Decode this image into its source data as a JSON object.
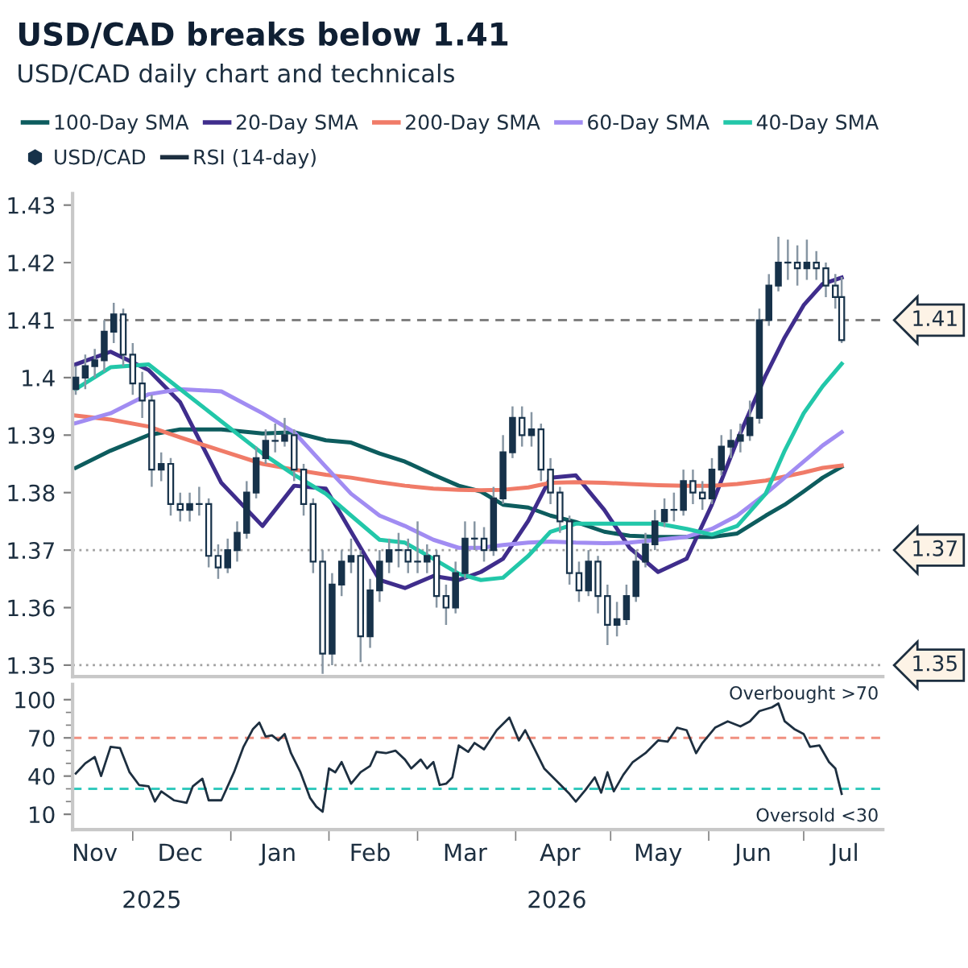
{
  "chart_data": [
    {
      "type": "candlestick",
      "title": "USD/CAD breaks below 1.41",
      "subtitle": "USD/CAD daily chart and technicals",
      "legend": "top",
      "tick_labels": "y",
      "xlim": [
        "2025-11-12",
        "2026-07-26"
      ],
      "ylim": [
        1.348,
        1.432
      ],
      "yticks": [
        1.35,
        1.36,
        1.37,
        1.38,
        1.39,
        1.4,
        1.41,
        1.42,
        1.43
      ],
      "ref_lines": [
        {
          "axis": "y",
          "value": 1.41,
          "label": "1.41",
          "color": "#808080",
          "line_style": "dashed"
        },
        {
          "axis": "y",
          "value": 1.37,
          "label": "1.37",
          "color": "#a0a0a0",
          "line_style": "dotted"
        },
        {
          "axis": "y",
          "value": 1.35,
          "label": "1.35",
          "color": "#a0a0a0",
          "line_style": "dotted"
        }
      ],
      "series": [
        {
          "name": "100-Day SMA",
          "type": "line",
          "color": "#0d5c5e",
          "x": [
            "2025-11-13",
            "2025-11-24",
            "2025-12-06",
            "2025-12-16",
            "2025-12-29",
            "2026-01-11",
            "2026-01-21",
            "2026-01-31",
            "2026-02-08",
            "2026-02-17",
            "2026-02-25",
            "2026-03-06",
            "2026-03-14",
            "2026-03-21",
            "2026-03-28",
            "2026-04-05",
            "2026-04-12",
            "2026-04-20",
            "2026-04-29",
            "2026-05-07",
            "2026-05-16",
            "2026-05-25",
            "2026-06-02",
            "2026-06-10",
            "2026-06-19",
            "2026-06-25",
            "2026-07-01",
            "2026-07-07",
            "2026-07-13"
          ],
          "values": [
            1.3843,
            1.3873,
            1.39,
            1.391,
            1.391,
            1.3903,
            1.3905,
            1.3891,
            1.3887,
            1.3868,
            1.3854,
            1.3831,
            1.3812,
            1.3802,
            1.3779,
            1.3774,
            1.376,
            1.3749,
            1.3732,
            1.3725,
            1.3723,
            1.3723,
            1.3723,
            1.3729,
            1.376,
            1.3779,
            1.3802,
            1.3826,
            1.3845
          ]
        },
        {
          "name": "20-Day SMA",
          "type": "line",
          "color": "#3f2d8c",
          "x": [
            "2025-11-13",
            "2025-11-24",
            "2025-12-06",
            "2025-12-16",
            "2025-12-29",
            "2026-01-11",
            "2026-01-21",
            "2026-01-31",
            "2026-02-08",
            "2026-02-17",
            "2026-02-25",
            "2026-03-06",
            "2026-03-14",
            "2026-03-21",
            "2026-03-28",
            "2026-04-05",
            "2026-04-12",
            "2026-04-20",
            "2026-04-29",
            "2026-05-07",
            "2026-05-16",
            "2026-05-25",
            "2026-06-02",
            "2026-06-10",
            "2026-06-19",
            "2026-06-25",
            "2026-07-01",
            "2026-07-07",
            "2026-07-13"
          ],
          "values": [
            1.4023,
            1.4045,
            1.4013,
            1.3957,
            1.3817,
            1.3742,
            1.3812,
            1.3807,
            1.3732,
            1.3648,
            1.3634,
            1.3655,
            1.3648,
            1.3662,
            1.3685,
            1.3751,
            1.3826,
            1.383,
            1.377,
            1.3704,
            1.3662,
            1.3685,
            1.3779,
            1.3891,
            1.4004,
            1.407,
            1.4126,
            1.4163,
            1.4174
          ]
        },
        {
          "name": "200-Day SMA",
          "type": "line",
          "color": "#f07b68",
          "x": [
            "2025-11-13",
            "2025-11-24",
            "2025-12-06",
            "2025-12-16",
            "2025-12-29",
            "2026-01-11",
            "2026-01-21",
            "2026-01-31",
            "2026-02-08",
            "2026-02-17",
            "2026-02-25",
            "2026-03-06",
            "2026-03-14",
            "2026-03-21",
            "2026-03-28",
            "2026-04-05",
            "2026-04-12",
            "2026-04-20",
            "2026-04-29",
            "2026-05-07",
            "2026-05-16",
            "2026-05-25",
            "2026-06-02",
            "2026-06-10",
            "2026-06-19",
            "2026-06-25",
            "2026-07-01",
            "2026-07-07",
            "2026-07-13"
          ],
          "values": [
            1.3934,
            1.3927,
            1.3915,
            1.3896,
            1.3873,
            1.385,
            1.384,
            1.3831,
            1.3826,
            1.3818,
            1.3812,
            1.3807,
            1.3805,
            1.3804,
            1.3805,
            1.3809,
            1.3817,
            1.3818,
            1.3817,
            1.3815,
            1.3813,
            1.3812,
            1.3812,
            1.3815,
            1.3821,
            1.3828,
            1.3835,
            1.3843,
            1.3847
          ]
        },
        {
          "name": "60-Day SMA",
          "type": "line",
          "color": "#a18cf2",
          "x": [
            "2025-11-13",
            "2025-11-24",
            "2025-12-06",
            "2025-12-16",
            "2025-12-29",
            "2026-01-11",
            "2026-01-21",
            "2026-01-31",
            "2026-02-08",
            "2026-02-17",
            "2026-02-25",
            "2026-03-06",
            "2026-03-14",
            "2026-03-21",
            "2026-03-28",
            "2026-04-05",
            "2026-04-12",
            "2026-04-20",
            "2026-04-29",
            "2026-05-07",
            "2026-05-16",
            "2026-05-25",
            "2026-06-02",
            "2026-06-10",
            "2026-06-19",
            "2026-06-25",
            "2026-07-01",
            "2026-07-07",
            "2026-07-13"
          ],
          "values": [
            1.3921,
            1.3938,
            1.3971,
            1.398,
            1.3976,
            1.3938,
            1.3905,
            1.3845,
            1.3798,
            1.376,
            1.3742,
            1.3718,
            1.3704,
            1.3704,
            1.3709,
            1.3713,
            1.3715,
            1.3713,
            1.3712,
            1.3713,
            1.3718,
            1.3723,
            1.3737,
            1.376,
            1.3798,
            1.3826,
            1.3854,
            1.3882,
            1.3905
          ]
        },
        {
          "name": "40-Day SMA",
          "type": "line",
          "color": "#22c7a9",
          "x": [
            "2025-11-13",
            "2025-11-24",
            "2025-12-06",
            "2025-12-16",
            "2025-12-29",
            "2026-01-11",
            "2026-01-21",
            "2026-01-31",
            "2026-02-08",
            "2026-02-17",
            "2026-02-25",
            "2026-03-06",
            "2026-03-14",
            "2026-03-21",
            "2026-03-28",
            "2026-04-05",
            "2026-04-12",
            "2026-04-20",
            "2026-04-29",
            "2026-05-07",
            "2026-05-16",
            "2026-05-25",
            "2026-06-02",
            "2026-06-10",
            "2026-06-19",
            "2026-06-25",
            "2026-07-01",
            "2026-07-07",
            "2026-07-13"
          ],
          "values": [
            1.398,
            1.4018,
            1.4023,
            1.398,
            1.3924,
            1.3868,
            1.3831,
            1.3798,
            1.376,
            1.3718,
            1.3713,
            1.3685,
            1.3659,
            1.3648,
            1.3652,
            1.369,
            1.3732,
            1.3746,
            1.3746,
            1.3746,
            1.3746,
            1.3737,
            1.3727,
            1.3742,
            1.3798,
            1.3873,
            1.3938,
            1.3985,
            1.4024
          ]
        },
        {
          "name": "USD/CAD",
          "type": "candlestick",
          "color": "#17324a",
          "x": [
            "2025-11-13",
            "2025-11-16",
            "2025-11-19",
            "2025-11-22",
            "2025-11-25",
            "2025-11-28",
            "2025-12-01",
            "2025-12-04",
            "2025-12-07",
            "2025-12-10",
            "2025-12-13",
            "2025-12-16",
            "2025-12-19",
            "2025-12-22",
            "2025-12-25",
            "2025-12-28",
            "2025-12-31",
            "2026-01-03",
            "2026-01-06",
            "2026-01-09",
            "2026-01-12",
            "2026-01-15",
            "2026-01-18",
            "2026-01-21",
            "2026-01-24",
            "2026-01-27",
            "2026-01-30",
            "2026-02-02",
            "2026-02-05",
            "2026-02-08",
            "2026-02-11",
            "2026-02-14",
            "2026-02-17",
            "2026-02-20",
            "2026-02-23",
            "2026-02-26",
            "2026-03-01",
            "2026-03-04",
            "2026-03-07",
            "2026-03-10",
            "2026-03-13",
            "2026-03-16",
            "2026-03-19",
            "2026-03-22",
            "2026-03-25",
            "2026-03-28",
            "2026-03-31",
            "2026-04-03",
            "2026-04-06",
            "2026-04-09",
            "2026-04-12",
            "2026-04-15",
            "2026-04-18",
            "2026-04-21",
            "2026-04-24",
            "2026-04-27",
            "2026-04-30",
            "2026-05-03",
            "2026-05-06",
            "2026-05-09",
            "2026-05-12",
            "2026-05-15",
            "2026-05-18",
            "2026-05-21",
            "2026-05-24",
            "2026-05-27",
            "2026-05-30",
            "2026-06-02",
            "2026-06-05",
            "2026-06-08",
            "2026-06-11",
            "2026-06-14",
            "2026-06-17",
            "2026-06-20",
            "2026-06-23",
            "2026-06-26",
            "2026-06-29",
            "2026-07-02",
            "2026-07-05",
            "2026-07-08",
            "2026-07-11",
            "2026-07-13"
          ],
          "ohlc": [
            [
              1.398,
              1.402,
              1.397,
              1.4
            ],
            [
              1.4,
              1.404,
              1.398,
              1.402
            ],
            [
              1.402,
              1.405,
              1.4,
              1.403
            ],
            [
              1.403,
              1.41,
              1.401,
              1.408
            ],
            [
              1.408,
              1.413,
              1.406,
              1.411
            ],
            [
              1.411,
              1.412,
              1.402,
              1.404
            ],
            [
              1.404,
              1.406,
              1.397,
              1.399
            ],
            [
              1.399,
              1.401,
              1.393,
              1.396
            ],
            [
              1.396,
              1.397,
              1.381,
              1.384
            ],
            [
              1.384,
              1.387,
              1.382,
              1.385
            ],
            [
              1.385,
              1.386,
              1.376,
              1.378
            ],
            [
              1.378,
              1.38,
              1.375,
              1.377
            ],
            [
              1.377,
              1.38,
              1.375,
              1.378
            ],
            [
              1.378,
              1.381,
              1.376,
              1.378
            ],
            [
              1.378,
              1.379,
              1.367,
              1.369
            ],
            [
              1.369,
              1.371,
              1.365,
              1.367
            ],
            [
              1.367,
              1.372,
              1.366,
              1.37
            ],
            [
              1.37,
              1.375,
              1.368,
              1.373
            ],
            [
              1.373,
              1.382,
              1.372,
              1.38
            ],
            [
              1.38,
              1.388,
              1.379,
              1.386
            ],
            [
              1.386,
              1.391,
              1.385,
              1.389
            ],
            [
              1.389,
              1.392,
              1.387,
              1.389
            ],
            [
              1.389,
              1.393,
              1.388,
              1.39
            ],
            [
              1.39,
              1.391,
              1.382,
              1.384
            ],
            [
              1.384,
              1.385,
              1.376,
              1.378
            ],
            [
              1.378,
              1.379,
              1.366,
              1.368
            ],
            [
              1.368,
              1.37,
              1.3485,
              1.352
            ],
            [
              1.352,
              1.366,
              1.35,
              1.364
            ],
            [
              1.364,
              1.37,
              1.362,
              1.368
            ],
            [
              1.368,
              1.372,
              1.366,
              1.369
            ],
            [
              1.369,
              1.37,
              1.3505,
              1.355
            ],
            [
              1.355,
              1.365,
              1.353,
              1.363
            ],
            [
              1.363,
              1.37,
              1.361,
              1.368
            ],
            [
              1.368,
              1.372,
              1.366,
              1.37
            ],
            [
              1.37,
              1.373,
              1.367,
              1.37
            ],
            [
              1.37,
              1.372,
              1.366,
              1.368
            ],
            [
              1.368,
              1.375,
              1.366,
              1.368
            ],
            [
              1.368,
              1.371,
              1.366,
              1.369
            ],
            [
              1.369,
              1.37,
              1.36,
              1.362
            ],
            [
              1.362,
              1.364,
              1.357,
              1.36
            ],
            [
              1.36,
              1.368,
              1.359,
              1.366
            ],
            [
              1.366,
              1.375,
              1.365,
              1.372
            ],
            [
              1.372,
              1.375,
              1.37,
              1.372
            ],
            [
              1.372,
              1.374,
              1.368,
              1.37
            ],
            [
              1.37,
              1.381,
              1.369,
              1.379
            ],
            [
              1.379,
              1.39,
              1.378,
              1.387
            ],
            [
              1.387,
              1.395,
              1.386,
              1.393
            ],
            [
              1.393,
              1.395,
              1.388,
              1.39
            ],
            [
              1.39,
              1.394,
              1.388,
              1.391
            ],
            [
              1.391,
              1.392,
              1.382,
              1.384
            ],
            [
              1.384,
              1.386,
              1.378,
              1.38
            ],
            [
              1.38,
              1.381,
              1.373,
              1.375
            ],
            [
              1.375,
              1.376,
              1.364,
              1.366
            ],
            [
              1.366,
              1.368,
              1.361,
              1.363
            ],
            [
              1.363,
              1.37,
              1.362,
              1.368
            ],
            [
              1.368,
              1.369,
              1.359,
              1.362
            ],
            [
              1.362,
              1.364,
              1.3535,
              1.357
            ],
            [
              1.357,
              1.361,
              1.355,
              1.358
            ],
            [
              1.358,
              1.364,
              1.357,
              1.362
            ],
            [
              1.362,
              1.37,
              1.361,
              1.368
            ],
            [
              1.368,
              1.373,
              1.367,
              1.371
            ],
            [
              1.371,
              1.377,
              1.37,
              1.375
            ],
            [
              1.375,
              1.379,
              1.374,
              1.377
            ],
            [
              1.377,
              1.38,
              1.375,
              1.377
            ],
            [
              1.377,
              1.384,
              1.376,
              1.382
            ],
            [
              1.382,
              1.384,
              1.378,
              1.38
            ],
            [
              1.38,
              1.382,
              1.377,
              1.379
            ],
            [
              1.379,
              1.386,
              1.378,
              1.384
            ],
            [
              1.384,
              1.39,
              1.383,
              1.388
            ],
            [
              1.388,
              1.391,
              1.386,
              1.389
            ],
            [
              1.389,
              1.392,
              1.387,
              1.39
            ],
            [
              1.39,
              1.396,
              1.389,
              1.393
            ],
            [
              1.393,
              1.412,
              1.392,
              1.41
            ],
            [
              1.41,
              1.418,
              1.409,
              1.416
            ],
            [
              1.416,
              1.4245,
              1.415,
              1.42
            ],
            [
              1.42,
              1.424,
              1.417,
              1.42
            ],
            [
              1.42,
              1.423,
              1.416,
              1.419
            ],
            [
              1.419,
              1.424,
              1.417,
              1.42
            ],
            [
              1.42,
              1.422,
              1.417,
              1.419
            ],
            [
              1.419,
              1.42,
              1.414,
              1.416
            ],
            [
              1.416,
              1.418,
              1.412,
              1.414
            ],
            [
              1.414,
              1.4175,
              1.406,
              1.4065
            ]
          ]
        }
      ]
    },
    {
      "type": "line",
      "legend": "top",
      "xlim": [
        "2025-11-12",
        "2026-07-26"
      ],
      "ylim": [
        -2,
        112
      ],
      "yticks": [
        10,
        {
          "value": 20,
          "label": null
        },
        {
          "value": 30,
          "label": null
        },
        40,
        {
          "value": 50,
          "label": null
        },
        {
          "value": 60,
          "label": null
        },
        70,
        {
          "value": 80,
          "label": null
        },
        {
          "value": 90,
          "label": null
        },
        100
      ],
      "xticks": [
        {
          "value": "2025-11-19",
          "label": "Nov"
        },
        {
          "value": "2025-12-01",
          "label": null
        },
        {
          "value": "2025-12-16",
          "label": "Dec"
        },
        {
          "value": "2026-01-01",
          "label": null
        },
        {
          "value": "2026-01-16",
          "label": "Jan"
        },
        {
          "value": "2026-02-01",
          "label": null
        },
        {
          "value": "2026-02-14",
          "label": "Feb"
        },
        {
          "value": "2026-03-01",
          "label": null
        },
        {
          "value": "2026-03-16",
          "label": "Mar"
        },
        {
          "value": "2026-04-01",
          "label": null
        },
        {
          "value": "2026-04-15",
          "label": "Apr"
        },
        {
          "value": "2026-05-01",
          "label": null
        },
        {
          "value": "2026-05-16",
          "label": "May"
        },
        {
          "value": "2026-06-01",
          "label": null
        },
        {
          "value": "2026-06-15",
          "label": "Jun"
        },
        {
          "value": "2026-07-01",
          "label": null
        },
        {
          "value": "2026-07-14",
          "label": "Jul"
        }
      ],
      "annotations": [
        "2025",
        "2026"
      ],
      "ref_lines": [
        {
          "axis": "y",
          "value": 70,
          "label": "Overbought >70",
          "color": "#f09080",
          "line_style": "dashed"
        },
        {
          "axis": "y",
          "value": 30,
          "label": "Oversold <30",
          "color": "#33c9bd",
          "line_style": "dashed"
        }
      ],
      "series": [
        {
          "name": "RSI (14-day)",
          "color": "#1d2f40",
          "x": [
            "2025-11-13",
            "2025-11-16",
            "2025-11-19",
            "2025-11-21",
            "2025-11-24",
            "2025-11-27",
            "2025-11-30",
            "2025-12-03",
            "2025-12-06",
            "2025-12-08",
            "2025-12-10",
            "2025-12-14",
            "2025-12-18",
            "2025-12-20",
            "2025-12-23",
            "2025-12-25",
            "2025-12-29",
            "2026-01-02",
            "2026-01-05",
            "2026-01-08",
            "2026-01-10",
            "2026-01-12",
            "2026-01-14",
            "2026-01-16",
            "2026-01-18",
            "2026-01-20",
            "2026-01-23",
            "2026-01-26",
            "2026-01-28",
            "2026-01-30",
            "2026-02-01",
            "2026-02-03",
            "2026-02-05",
            "2026-02-08",
            "2026-02-11",
            "2026-02-14",
            "2026-02-16",
            "2026-02-19",
            "2026-02-22",
            "2026-02-25",
            "2026-02-27",
            "2026-03-02",
            "2026-03-04",
            "2026-03-06",
            "2026-03-08",
            "2026-03-10",
            "2026-03-12",
            "2026-03-14",
            "2026-03-17",
            "2026-03-19",
            "2026-03-22",
            "2026-03-26",
            "2026-03-30",
            "2026-04-02",
            "2026-04-04",
            "2026-04-07",
            "2026-04-10",
            "2026-04-14",
            "2026-04-18",
            "2026-04-20",
            "2026-04-23",
            "2026-04-26",
            "2026-04-28",
            "2026-04-30",
            "2026-05-02",
            "2026-05-05",
            "2026-05-08",
            "2026-05-12",
            "2026-05-16",
            "2026-05-19",
            "2026-05-22",
            "2026-05-25",
            "2026-05-28",
            "2026-05-30",
            "2026-06-03",
            "2026-06-07",
            "2026-06-11",
            "2026-06-14",
            "2026-06-17",
            "2026-06-21",
            "2026-06-23",
            "2026-06-25",
            "2026-06-28",
            "2026-07-01",
            "2026-07-03",
            "2026-07-06",
            "2026-07-09",
            "2026-07-11",
            "2026-07-13"
          ],
          "values": [
            42,
            50,
            55,
            40,
            63,
            62,
            43,
            33,
            32,
            20,
            28,
            21,
            19,
            32,
            38,
            21,
            21,
            43,
            63,
            77,
            82,
            71,
            72,
            68,
            73,
            58,
            43,
            23,
            16,
            12,
            46,
            43,
            51,
            34,
            43,
            48,
            59,
            58,
            60,
            53,
            46,
            53,
            46,
            51,
            33,
            34,
            39,
            64,
            59,
            66,
            61,
            76,
            86,
            68,
            76,
            61,
            46,
            36,
            26,
            20,
            29,
            39,
            27,
            43,
            28,
            41,
            51,
            58,
            68,
            67,
            78,
            76,
            58,
            66,
            78,
            83,
            79,
            83,
            91,
            94,
            97,
            83,
            77,
            73,
            63,
            64,
            51,
            46,
            26
          ]
        }
      ]
    }
  ]
}
